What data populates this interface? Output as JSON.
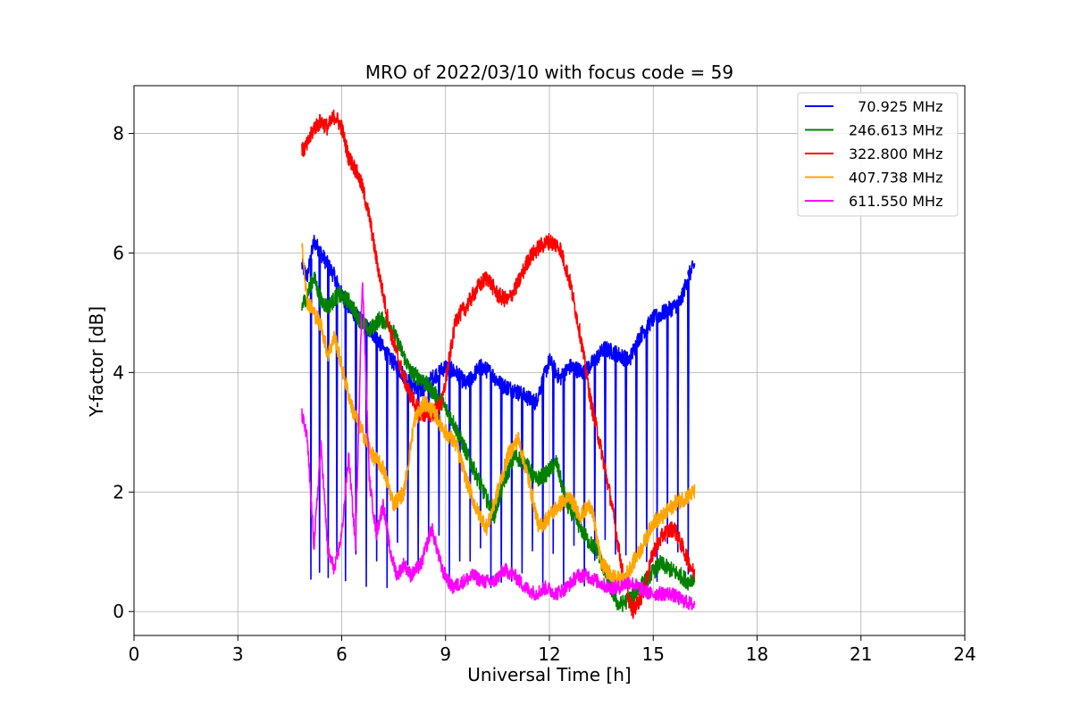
{
  "chart_data": {
    "type": "line",
    "title": "MRO of 2022/03/10 with focus code = 59",
    "xlabel": "Universal Time [h]",
    "ylabel": "Y-factor [dB]",
    "xlim": [
      0,
      24
    ],
    "ylim": [
      -0.4,
      8.8
    ],
    "xticks": [
      0,
      3,
      6,
      9,
      12,
      15,
      18,
      21,
      24
    ],
    "yticks": [
      0,
      2,
      4,
      6,
      8
    ],
    "grid": true,
    "legend_position": "top-right",
    "series": [
      {
        "name": "  70.925 MHz",
        "color": "#0000ff",
        "x": [
          4.85,
          5.0,
          5.2,
          5.4,
          5.6,
          5.8,
          6.0,
          6.2,
          6.5,
          6.8,
          7.0,
          7.3,
          7.6,
          8.0,
          8.3,
          8.6,
          9.0,
          9.3,
          9.6,
          10.0,
          10.3,
          10.6,
          11.0,
          11.3,
          11.6,
          12.0,
          12.3,
          12.6,
          13.0,
          13.3,
          13.6,
          14.0,
          14.3,
          14.6,
          15.0,
          15.3,
          15.6,
          15.8,
          16.0,
          16.2
        ],
        "y": [
          5.8,
          5.6,
          6.2,
          6.0,
          5.8,
          5.6,
          5.3,
          5.1,
          4.9,
          4.7,
          4.6,
          4.3,
          4.1,
          3.8,
          3.7,
          3.9,
          4.1,
          4.0,
          3.8,
          4.1,
          4.0,
          3.8,
          3.7,
          3.6,
          3.5,
          4.2,
          3.9,
          4.1,
          4.0,
          4.2,
          4.4,
          4.3,
          4.2,
          4.6,
          4.9,
          5.0,
          5.1,
          5.2,
          5.6,
          5.8
        ],
        "dips": [
          4.85,
          5.1,
          5.35,
          5.6,
          5.85,
          6.1,
          6.4,
          6.7,
          7.0,
          7.3,
          7.6,
          7.9,
          8.2,
          8.5,
          8.8,
          9.1,
          9.4,
          9.7,
          10.0,
          10.3,
          10.6,
          10.9,
          11.2,
          11.5,
          11.8,
          12.1,
          12.4,
          12.7,
          13.0,
          13.3,
          13.6,
          13.9,
          14.2,
          14.5,
          14.8,
          15.1,
          15.4,
          15.7,
          16.0
        ],
        "dip_floor": 0.4
      },
      {
        "name": "246.613 MHz",
        "color": "#008000",
        "x": [
          4.85,
          5.0,
          5.2,
          5.4,
          5.6,
          5.9,
          6.2,
          6.5,
          6.8,
          7.1,
          7.4,
          7.7,
          8.0,
          8.3,
          8.6,
          8.9,
          9.2,
          9.5,
          9.8,
          10.1,
          10.4,
          10.7,
          11.0,
          11.3,
          11.6,
          11.9,
          12.2,
          12.5,
          12.8,
          13.1,
          13.4,
          13.7,
          14.0,
          14.3,
          14.6,
          14.9,
          15.2,
          15.5,
          15.8,
          16.0,
          16.2
        ],
        "y": [
          5.1,
          5.3,
          5.6,
          5.2,
          5.1,
          5.3,
          5.2,
          4.9,
          4.7,
          4.9,
          4.8,
          4.4,
          4.0,
          3.9,
          3.7,
          3.5,
          3.2,
          2.8,
          2.4,
          2.0,
          1.6,
          2.2,
          2.6,
          2.5,
          2.2,
          2.3,
          2.5,
          1.8,
          1.5,
          1.2,
          1.0,
          0.5,
          0.1,
          0.2,
          0.4,
          0.6,
          0.8,
          0.7,
          0.6,
          0.5,
          0.6
        ]
      },
      {
        "name": "322.800 MHz",
        "color": "#ff0000",
        "x": [
          4.85,
          5.0,
          5.2,
          5.4,
          5.6,
          5.8,
          6.0,
          6.2,
          6.4,
          6.6,
          6.8,
          7.0,
          7.2,
          7.4,
          7.6,
          7.8,
          8.0,
          8.3,
          8.6,
          8.9,
          9.1,
          9.3,
          9.6,
          9.9,
          10.2,
          10.5,
          10.8,
          11.1,
          11.4,
          11.7,
          12.0,
          12.3,
          12.6,
          12.9,
          13.2,
          13.5,
          13.8,
          14.1,
          14.4,
          14.7,
          15.0,
          15.3,
          15.6,
          15.9,
          16.2
        ],
        "y": [
          7.7,
          7.8,
          8.1,
          8.2,
          8.1,
          8.3,
          8.1,
          7.6,
          7.4,
          7.1,
          6.6,
          5.9,
          5.3,
          4.7,
          4.3,
          3.9,
          3.6,
          3.3,
          3.3,
          3.5,
          4.2,
          4.9,
          5.1,
          5.4,
          5.6,
          5.3,
          5.2,
          5.5,
          5.9,
          6.1,
          6.2,
          6.1,
          5.5,
          4.6,
          3.5,
          2.7,
          1.8,
          0.7,
          0.0,
          0.3,
          1.0,
          1.3,
          1.4,
          1.0,
          0.6
        ]
      },
      {
        "name": "407.738 MHz",
        "color": "#ffa500",
        "x": [
          4.85,
          5.0,
          5.2,
          5.4,
          5.6,
          5.8,
          6.0,
          6.3,
          6.6,
          6.9,
          7.2,
          7.5,
          7.8,
          8.1,
          8.4,
          8.7,
          9.0,
          9.3,
          9.6,
          9.9,
          10.2,
          10.5,
          10.8,
          11.1,
          11.4,
          11.7,
          12.0,
          12.3,
          12.6,
          12.9,
          13.2,
          13.5,
          13.8,
          14.1,
          14.4,
          14.7,
          15.0,
          15.3,
          15.6,
          15.9,
          16.2
        ],
        "y": [
          6.2,
          5.2,
          5.0,
          4.8,
          4.3,
          4.6,
          4.1,
          3.4,
          3.0,
          2.6,
          2.4,
          1.8,
          2.0,
          3.2,
          3.5,
          3.3,
          3.0,
          2.8,
          2.2,
          1.7,
          1.4,
          2.0,
          2.6,
          2.9,
          2.2,
          1.4,
          1.6,
          1.8,
          1.9,
          1.6,
          1.8,
          0.8,
          0.6,
          0.5,
          0.8,
          1.1,
          1.5,
          1.6,
          1.8,
          1.9,
          2.0
        ]
      },
      {
        "name": "611.550 MHz",
        "color": "#ff00ff",
        "x": [
          4.85,
          5.0,
          5.2,
          5.4,
          5.6,
          5.8,
          6.0,
          6.2,
          6.4,
          6.6,
          6.8,
          7.0,
          7.2,
          7.4,
          7.6,
          7.8,
          8.0,
          8.3,
          8.6,
          8.9,
          9.2,
          9.5,
          9.8,
          10.1,
          10.4,
          10.7,
          11.0,
          11.3,
          11.6,
          11.9,
          12.2,
          12.5,
          12.8,
          13.1,
          13.4,
          13.7,
          14.0,
          14.3,
          14.6,
          14.9,
          15.2,
          15.5,
          15.8,
          16.2
        ],
        "y": [
          3.3,
          2.9,
          1.1,
          2.8,
          1.0,
          0.7,
          1.3,
          2.6,
          1.1,
          5.6,
          2.2,
          1.3,
          1.8,
          1.0,
          0.6,
          0.8,
          0.6,
          0.8,
          1.4,
          0.7,
          0.4,
          0.5,
          0.6,
          0.5,
          0.5,
          0.7,
          0.6,
          0.4,
          0.3,
          0.4,
          0.3,
          0.4,
          0.6,
          0.6,
          0.5,
          0.4,
          0.4,
          0.5,
          0.4,
          0.3,
          0.3,
          0.3,
          0.2,
          0.1
        ]
      }
    ]
  }
}
